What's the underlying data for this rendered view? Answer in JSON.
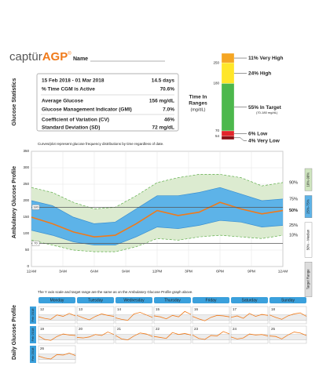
{
  "header": {
    "logo": "captür",
    "logo_bold": "AGP",
    "logo_mark": "®",
    "name_label": "Name"
  },
  "glucose_statistics": {
    "label": "Glucose Statistics",
    "rows": [
      {
        "label": "15 Feb 2018 - 01 Mar 2018",
        "value": "14.5 days"
      },
      {
        "label": "% Time CGM is Active",
        "value": "70.6%"
      },
      {
        "label": "Average Glucose",
        "value": "156 mg/dL"
      },
      {
        "label": "Glucose Management Indicator (GMI)",
        "value": "7.0%"
      },
      {
        "label": "Coefficient of Variation (CV)",
        "value": "46%"
      },
      {
        "label": "Standard Deviation (SD)",
        "value": "72 mg/dL"
      }
    ]
  },
  "time_in_ranges": {
    "label": "Time In",
    "label2": "Ranges",
    "unit": "(mg/dL)",
    "thresholds": [
      250,
      180,
      70,
      54
    ],
    "segments": [
      {
        "name": "Very High",
        "value": 11,
        "value_label": "11%",
        "color": "#f5a623"
      },
      {
        "name": "High",
        "value": 24,
        "value_label": "24%",
        "color": "#ffe629"
      },
      {
        "name": "In Target",
        "value": 55,
        "value_label": "55%",
        "note": "(70-180 mg/dL)",
        "color": "#4cb84c"
      },
      {
        "name": "Low",
        "value": 6,
        "value_label": "6%",
        "color": "#e2252b"
      },
      {
        "name": "Very Low",
        "value": 4,
        "value_label": "4%",
        "color": "#8b1116"
      }
    ]
  },
  "chart_data": {
    "type": "line",
    "title": "Ambulatory Glucose Profile",
    "subtitle": "Curves/plot represent glucose frequency distributions by time regardless of date.",
    "x": [
      0,
      2,
      4,
      6,
      8,
      10,
      12,
      14,
      16,
      18,
      20,
      22,
      24
    ],
    "xlim": [
      0,
      24
    ],
    "xticks": [
      {
        "value": 0,
        "label": "12AM"
      },
      {
        "value": 3,
        "label": "3AM"
      },
      {
        "value": 6,
        "label": "6AM"
      },
      {
        "value": 9,
        "label": "9AM"
      },
      {
        "value": 12,
        "label": "12PM"
      },
      {
        "value": 15,
        "label": "3PM"
      },
      {
        "value": 18,
        "label": "6PM"
      },
      {
        "value": 21,
        "label": "9PM"
      },
      {
        "value": 24,
        "label": "12AM"
      }
    ],
    "ylim": [
      0,
      350
    ],
    "yticks": [
      0,
      50,
      100,
      150,
      200,
      250,
      300,
      350
    ],
    "grid": true,
    "target_range": [
      70,
      180
    ],
    "series": [
      {
        "name": "10%",
        "color": "#5fae4a",
        "values": [
          80,
          65,
          50,
          45,
          45,
          60,
          85,
          80,
          90,
          95,
          90,
          85,
          95
        ]
      },
      {
        "name": "25%",
        "color": "#3a8fd0",
        "values": [
          110,
          95,
          75,
          65,
          65,
          90,
          120,
          115,
          125,
          140,
          135,
          120,
          125
        ]
      },
      {
        "name": "50%",
        "color": "#f07a1a",
        "values": [
          150,
          130,
          105,
          90,
          95,
          130,
          170,
          155,
          165,
          195,
          175,
          160,
          170
        ]
      },
      {
        "name": "75%",
        "color": "#3a8fd0",
        "values": [
          200,
          185,
          150,
          130,
          135,
          175,
          215,
          215,
          225,
          240,
          220,
          200,
          205
        ]
      },
      {
        "name": "90%",
        "color": "#5fae4a",
        "values": [
          240,
          225,
          195,
          175,
          180,
          215,
          255,
          270,
          280,
          280,
          270,
          245,
          255
        ]
      }
    ],
    "legend_tags": [
      {
        "label": "10%-90%",
        "color": "#cfe5bf"
      },
      {
        "label": "25%-75%",
        "color": "#5db3e8"
      },
      {
        "label": "50% - Median",
        "color": "#ffffff"
      },
      {
        "label": "Target Range",
        "color": "#dddddd"
      }
    ]
  },
  "daily": {
    "label": "Daily Glucose Profile",
    "note": "The Y axis scale and target range are the same as on the Ambulatory Glucose Profile graph above.",
    "weekdays": [
      "Monday",
      "Tuesday",
      "Wednesday",
      "Thursday",
      "Friday",
      "Saturday",
      "Sunday"
    ],
    "x": [
      0,
      4,
      8,
      12,
      16,
      20,
      24
    ],
    "rows": [
      {
        "month": "Feb 2018",
        "days": [
          {
            "date": "12",
            "values": [
              140,
              110,
              90,
              180,
              150,
              210,
              160
            ]
          },
          {
            "date": "13",
            "values": [
              170,
              120,
              80,
              150,
              200,
              170,
              150
            ]
          },
          {
            "date": "14",
            "values": [
              120,
              90,
              70,
              200,
              230,
              180,
              130
            ]
          },
          {
            "date": "15",
            "values": [
              160,
              140,
              100,
              170,
              140,
              250,
              190
            ]
          },
          {
            "date": "16",
            "values": [
              150,
              100,
              60,
              130,
              170,
              160,
              140
            ]
          },
          {
            "date": "17",
            "values": [
              130,
              160,
              110,
              210,
              150,
              190,
              170
            ]
          },
          {
            "date": "18",
            "values": [
              180,
              130,
              90,
              160,
              200,
              220,
              150
            ]
          }
        ]
      },
      {
        "month": "Feb 2018",
        "days": [
          {
            "date": "19",
            "values": [
              150,
              80,
              60,
              140,
              190,
              170,
              160
            ]
          },
          {
            "date": "20",
            "values": [
              120,
              110,
              130,
              180,
              160,
              230,
              180
            ]
          },
          {
            "date": "21",
            "values": [
              160,
              90,
              70,
              150,
              210,
              190,
              140
            ]
          },
          {
            "date": "22",
            "values": [
              140,
              120,
              100,
              220,
              180,
              200,
              170
            ]
          },
          {
            "date": "23",
            "values": [
              170,
              100,
              80,
              160,
              150,
              240,
              190
            ]
          },
          {
            "date": "24",
            "values": [
              130,
              90,
              110,
              190,
              170,
              180,
              150
            ]
          },
          {
            "date": "25",
            "values": [
              150,
              140,
              90,
              170,
              230,
              210,
              160
            ]
          }
        ]
      },
      {
        "month": "Feb 2018",
        "days": [
          {
            "date": "26",
            "values": [
              140,
              100,
              80,
              170,
              160,
              200,
              150
            ]
          }
        ]
      }
    ]
  }
}
